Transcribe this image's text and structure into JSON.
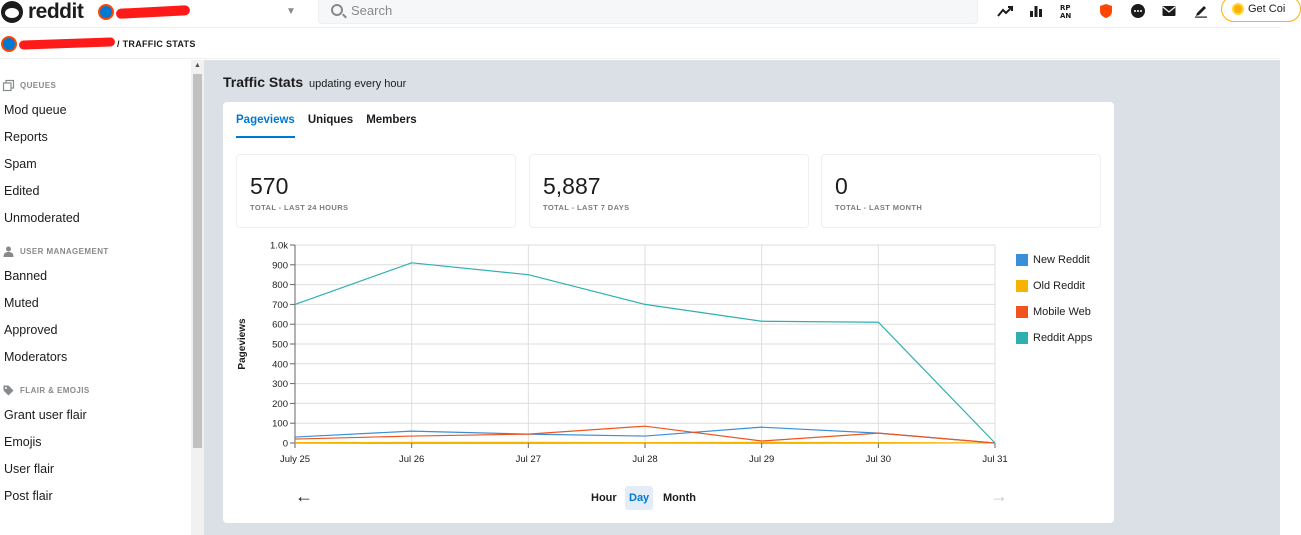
{
  "header": {
    "logo_text": "reddit",
    "search_placeholder": "Search",
    "get_coins_label": "Get Coi"
  },
  "breadcrumb": {
    "current": "/ TRAFFIC STATS"
  },
  "sidebar": {
    "sections": [
      {
        "title": "QUEUES",
        "icon": "queue-icon",
        "items": [
          "Mod queue",
          "Reports",
          "Spam",
          "Edited",
          "Unmoderated"
        ]
      },
      {
        "title": "USER MANAGEMENT",
        "icon": "user-icon",
        "items": [
          "Banned",
          "Muted",
          "Approved",
          "Moderators"
        ]
      },
      {
        "title": "FLAIR & EMOJIS",
        "icon": "tag-icon",
        "items": [
          "Grant user flair",
          "Emojis",
          "User flair",
          "Post flair"
        ]
      }
    ]
  },
  "main": {
    "title": "Traffic Stats",
    "subtitle": "updating every hour",
    "tabs": [
      "Pageviews",
      "Uniques",
      "Members"
    ],
    "active_tab": "Pageviews",
    "stats": [
      {
        "value": "570",
        "label": "TOTAL - LAST 24 HOURS"
      },
      {
        "value": "5,887",
        "label": "TOTAL - LAST 7 DAYS"
      },
      {
        "value": "0",
        "label": "TOTAL - LAST MONTH"
      }
    ],
    "granularity": [
      "Hour",
      "Day",
      "Month"
    ],
    "active_granularity": "Day"
  },
  "chart_data": {
    "type": "line",
    "title": "",
    "xlabel": "",
    "ylabel": "Pageviews",
    "categories": [
      "July 25",
      "Jul 26",
      "Jul 27",
      "Jul 28",
      "Jul 29",
      "Jul 30",
      "Jul 31"
    ],
    "ylim": [
      0,
      1000
    ],
    "yticks": [
      "0",
      "100",
      "200",
      "300",
      "400",
      "500",
      "600",
      "700",
      "800",
      "900",
      "1.0k"
    ],
    "grid": true,
    "legend_position": "right",
    "series": [
      {
        "name": "New Reddit",
        "color": "#3a8fd9",
        "values": [
          30,
          60,
          45,
          35,
          80,
          50,
          0
        ]
      },
      {
        "name": "Old Reddit",
        "color": "#f5b400",
        "values": [
          2,
          3,
          3,
          2,
          3,
          2,
          0
        ]
      },
      {
        "name": "Mobile Web",
        "color": "#f0541e",
        "values": [
          20,
          35,
          45,
          85,
          10,
          50,
          0
        ]
      },
      {
        "name": "Reddit Apps",
        "color": "#2fb0b0",
        "values": [
          700,
          910,
          850,
          700,
          615,
          610,
          0
        ]
      }
    ]
  }
}
